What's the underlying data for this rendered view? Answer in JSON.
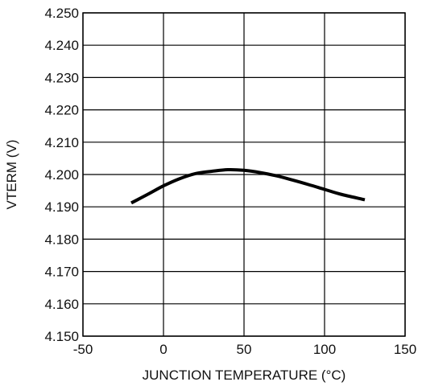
{
  "chart_data": {
    "type": "line",
    "title": "",
    "xlabel": "JUNCTION TEMPERATURE (°C)",
    "ylabel": "VTERM (V)",
    "xlim": [
      -50,
      150
    ],
    "ylim": [
      4.15,
      4.25
    ],
    "x_ticks": [
      -50,
      0,
      50,
      100,
      150
    ],
    "x_tick_labels": [
      "-50",
      "0",
      "50",
      "100",
      "150"
    ],
    "y_ticks": [
      4.15,
      4.16,
      4.17,
      4.18,
      4.19,
      4.2,
      4.21,
      4.22,
      4.23,
      4.24,
      4.25
    ],
    "y_tick_labels": [
      "4.150",
      "4.160",
      "4.170",
      "4.180",
      "4.190",
      "4.200",
      "4.210",
      "4.220",
      "4.230",
      "4.240",
      "4.250"
    ],
    "grid": true,
    "legend": "none",
    "series": [
      {
        "color": "#000000",
        "x": [
          -20,
          -10,
          0,
          10,
          20,
          30,
          40,
          50,
          60,
          70,
          80,
          90,
          100,
          110,
          125
        ],
        "y": [
          4.1912,
          4.1938,
          4.1965,
          4.1987,
          4.2003,
          4.201,
          4.2015,
          4.2013,
          4.2006,
          4.1996,
          4.1983,
          4.1969,
          4.1954,
          4.1939,
          4.1922
        ]
      }
    ]
  }
}
